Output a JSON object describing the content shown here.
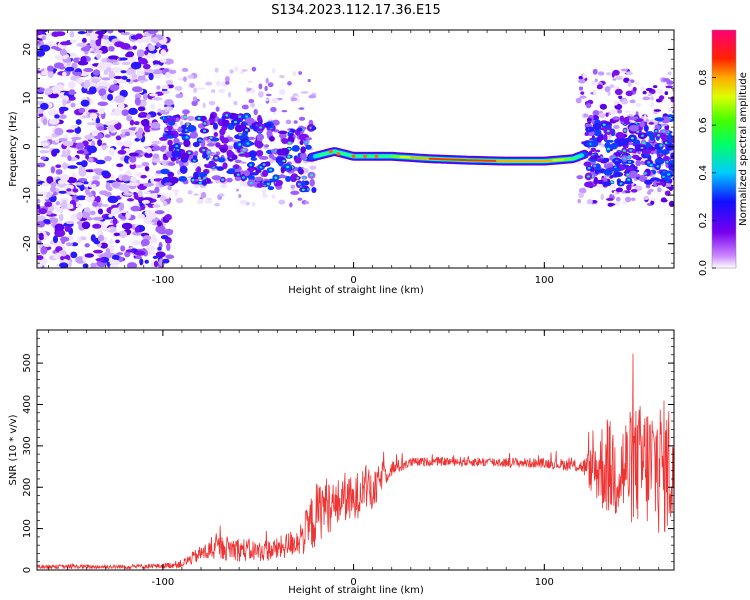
{
  "figure_title": "S134.2023.112.17.36.E15",
  "chart_data": [
    {
      "type": "heatmap",
      "title": "S134.2023.112.17.36.E15",
      "xlabel": "Height of straight line (km)",
      "ylabel": "Frequency (Hz)",
      "xlim": [
        -166,
        168
      ],
      "ylim": [
        -25,
        24
      ],
      "xticks": [
        -100,
        0,
        100
      ],
      "yticks": [
        -20,
        -10,
        0,
        10,
        20
      ],
      "colorbar": {
        "label": "Normalized spectral amplitude",
        "range": [
          0,
          1
        ],
        "ticks": [
          "0.0",
          "0.2",
          "0.4",
          "0.6",
          "0.8"
        ]
      },
      "ridge": {
        "x": [
          -100,
          -60,
          -30,
          -20,
          -10,
          0,
          20,
          40,
          60,
          80,
          100,
          115,
          125
        ],
        "y": [
          -1,
          0,
          -3,
          -2,
          -1,
          -2,
          -2,
          -2.5,
          -2.8,
          -3,
          -3,
          -2.5,
          -1
        ]
      }
    },
    {
      "type": "line",
      "xlabel": "Height of straight line (km)",
      "ylabel": "SNR (10 * v/v)",
      "xlim": [
        -166,
        168
      ],
      "ylim": [
        0,
        580
      ],
      "xticks": [
        -100,
        0,
        100
      ],
      "yticks": [
        0,
        100,
        200,
        300,
        400,
        500
      ],
      "series": [
        {
          "name": "SNR",
          "color": "#ee3333",
          "x": [
            -166,
            -120,
            -100,
            -90,
            -80,
            -70,
            -60,
            -50,
            -40,
            -30,
            -25,
            -20,
            -15,
            -10,
            -5,
            0,
            5,
            10,
            15,
            20,
            30,
            40,
            60,
            80,
            100,
            110,
            120,
            125,
            130,
            140,
            150,
            160,
            168
          ],
          "y": [
            8,
            8,
            10,
            15,
            40,
            55,
            50,
            45,
            50,
            70,
            90,
            130,
            160,
            150,
            180,
            160,
            210,
            180,
            230,
            245,
            260,
            262,
            262,
            260,
            258,
            255,
            250,
            240,
            250,
            240,
            255,
            250,
            245
          ],
          "jitter": [
            5,
            5,
            6,
            10,
            20,
            30,
            30,
            25,
            28,
            35,
            55,
            80,
            70,
            60,
            60,
            60,
            55,
            50,
            35,
            20,
            12,
            10,
            12,
            12,
            12,
            14,
            16,
            60,
            110,
            130,
            150,
            170,
            160
          ]
        }
      ]
    }
  ]
}
